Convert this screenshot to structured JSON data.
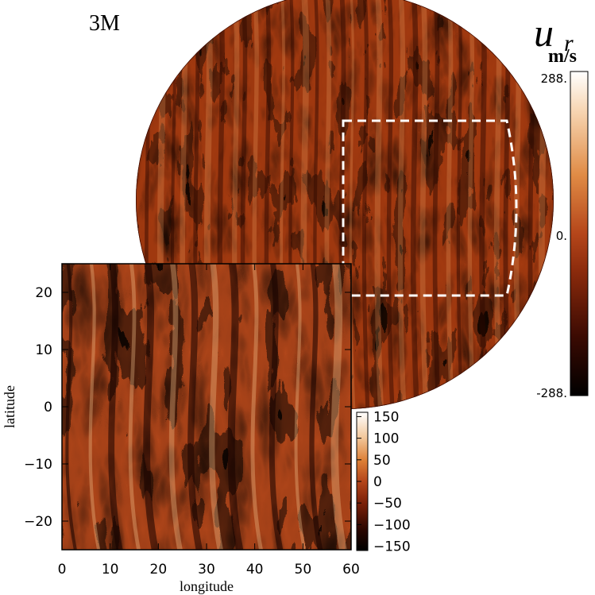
{
  "panel_label": "3M",
  "main_colorbar": {
    "symbol": "u",
    "subscript": "r",
    "units": "m/s",
    "max_label": "288.",
    "mid_label": "0.",
    "min_label": "-288."
  },
  "inset": {
    "xlabel": "longitude",
    "ylabel": "latitude",
    "xticks": [
      "0",
      "10",
      "20",
      "30",
      "40",
      "50",
      "60"
    ],
    "yticks": [
      "20",
      "10",
      "0",
      "-10",
      "-20"
    ],
    "colorbar_ticks": [
      "150",
      "100",
      "50",
      "0",
      "-50",
      "-100",
      "-150"
    ]
  },
  "colors": {
    "map_base": "#a23a10",
    "map_dark": "#2a0600",
    "map_light": "#f2a060",
    "highlight_box": "#ffffff"
  }
}
